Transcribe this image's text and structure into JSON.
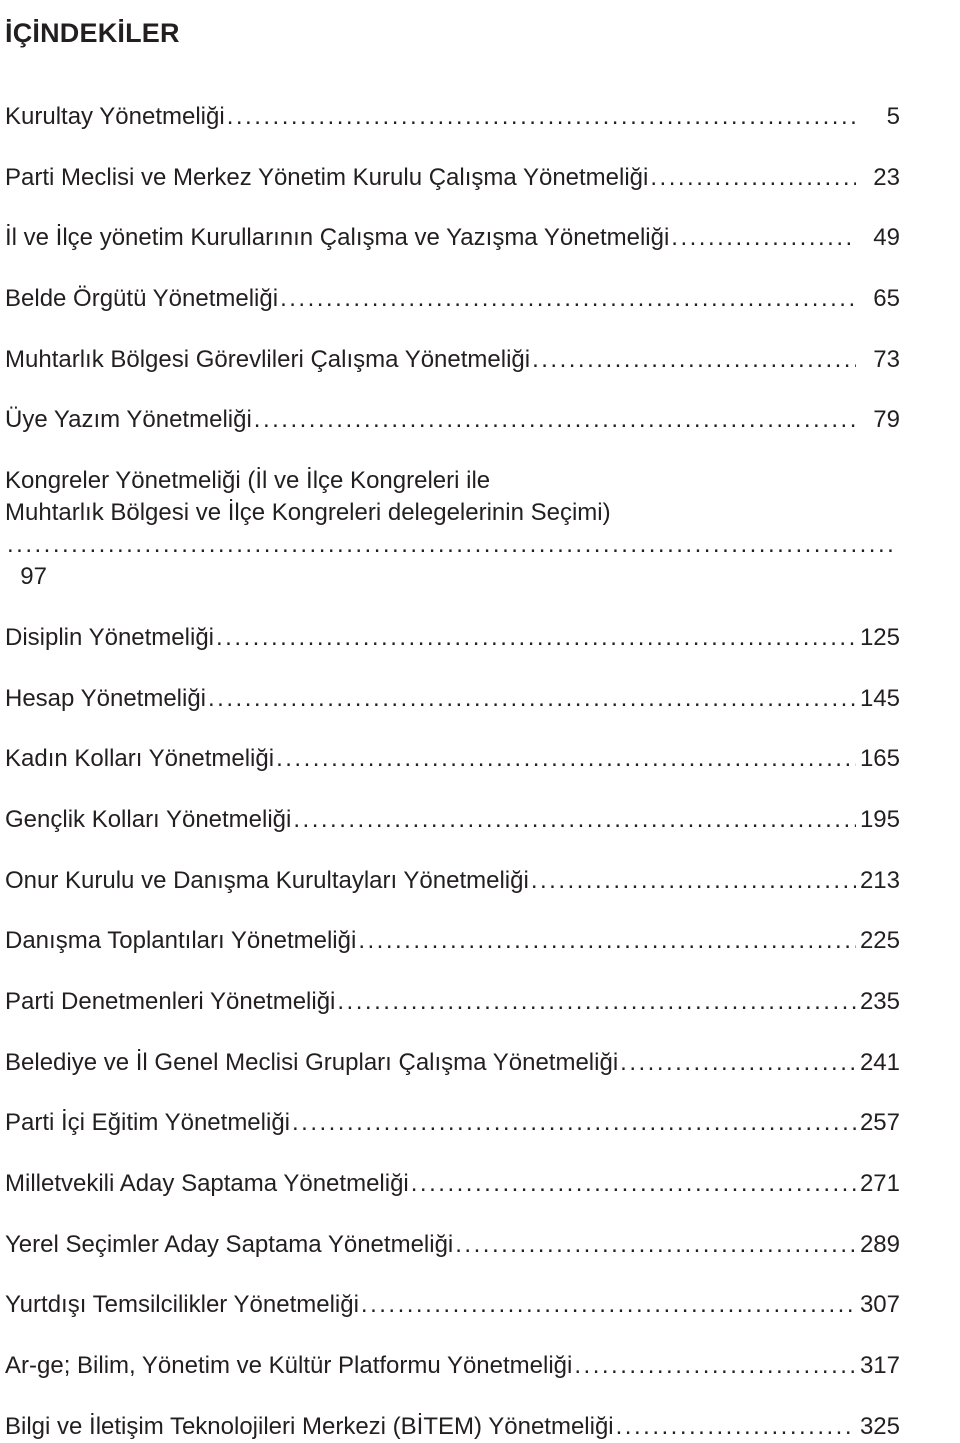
{
  "title": "İÇİNDEKİLER",
  "entries": [
    {
      "label": "Kurultay Yönetmeliği",
      "page": "5"
    },
    {
      "label": "Parti Meclisi ve Merkez Yönetim Kurulu Çalışma Yönetmeliği",
      "page": "23"
    },
    {
      "label": "İl ve İlçe yönetim Kurullarının Çalışma ve Yazışma Yönetmeliği",
      "page": "49"
    },
    {
      "label": "Belde Örgütü Yönetmeliği",
      "page": "65"
    },
    {
      "label": "Muhtarlık Bölgesi Görevlileri Çalışma Yönetmeliği",
      "page": "73"
    },
    {
      "label": "Üye Yazım Yönetmeliği",
      "page": "79"
    },
    {
      "label": "Kongreler Yönetmeliği (İl ve İlçe Kongreleri ile",
      "label2": "Muhtarlık Bölgesi ve İlçe Kongreleri delegelerinin Seçimi)",
      "page": "97"
    },
    {
      "label": "Disiplin Yönetmeliği",
      "page": "125"
    },
    {
      "label": "Hesap Yönetmeliği",
      "page": "145"
    },
    {
      "label": "Kadın Kolları Yönetmeliği",
      "page": "165"
    },
    {
      "label": "Gençlik Kolları Yönetmeliği",
      "page": "195"
    },
    {
      "label": "Onur Kurulu ve Danışma Kurultayları Yönetmeliği",
      "page": "213"
    },
    {
      "label": "Danışma Toplantıları Yönetmeliği",
      "page": "225"
    },
    {
      "label": "Parti Denetmenleri Yönetmeliği",
      "page": "235"
    },
    {
      "label": "Belediye ve İl Genel Meclisi Grupları Çalışma Yönetmeliği",
      "page": "241"
    },
    {
      "label": "Parti İçi Eğitim Yönetmeliği",
      "page": "257"
    },
    {
      "label": "Milletvekili Aday Saptama Yönetmeliği",
      "page": "271"
    },
    {
      "label": "Yerel Seçimler Aday Saptama Yönetmeliği",
      "page": "289"
    },
    {
      "label": "Yurtdışı Temsilcilikler Yönetmeliği",
      "page": "307"
    },
    {
      "label": "Ar-ge; Bilim, Yönetim ve Kültür Platformu Yönetmeliği",
      "page": "317"
    },
    {
      "label": "Bilgi ve İletişim Teknolojileri Merkezi (BİTEM) Yönetmeliği",
      "page": "325"
    }
  ]
}
